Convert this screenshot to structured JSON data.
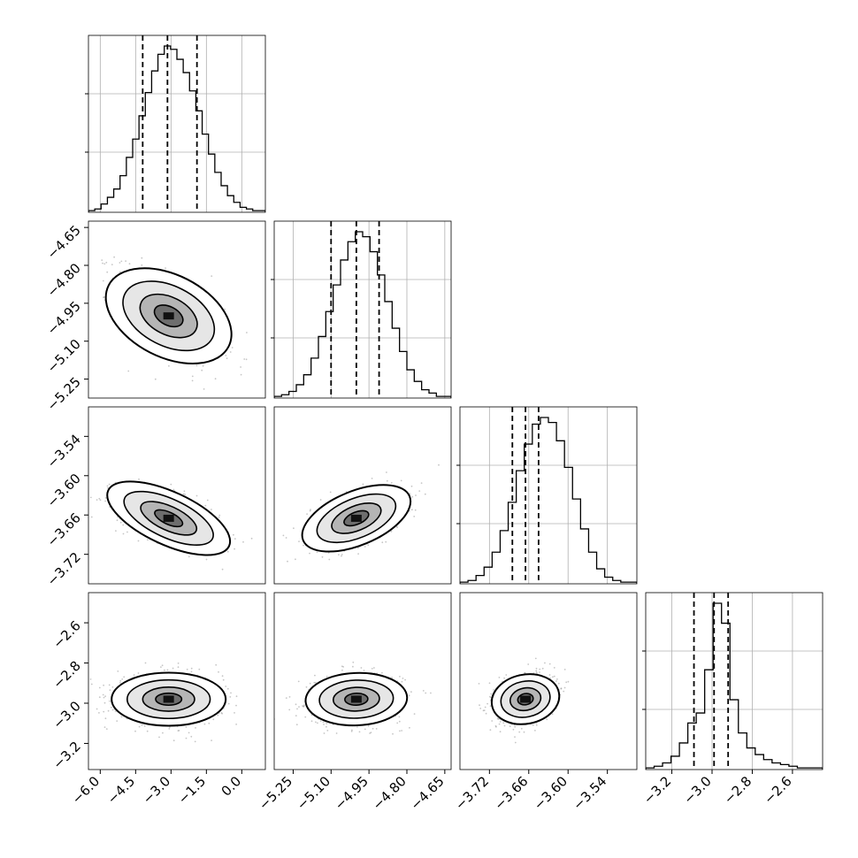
{
  "chart_data": {
    "type": "corner",
    "description_free": true,
    "parameters": [
      {
        "range": [
          -6.5,
          1.0
        ],
        "ticks": [
          -6.0,
          -4.5,
          -3.0,
          -1.5,
          0.0
        ],
        "tick_labels": [
          "−6.0",
          "−4.5",
          "−3.0",
          "−1.5",
          "0.0"
        ],
        "quantiles": [
          -4.2,
          -3.15,
          -1.9
        ],
        "mean": -3.1,
        "sd": 1.1
      },
      {
        "range": [
          -5.325,
          -4.625
        ],
        "ticks": [
          -5.25,
          -5.1,
          -4.95,
          -4.8,
          -4.65
        ],
        "tick_labels": [
          "−5.25",
          "−5.10",
          "−4.95",
          "−4.80",
          "−4.65"
        ],
        "quantiles": [
          -5.1,
          -5.0,
          -4.91
        ],
        "mean": -5.0,
        "sd": 0.09
      },
      {
        "range": [
          -3.765,
          -3.495
        ],
        "ticks": [
          -3.72,
          -3.66,
          -3.6,
          -3.54
        ],
        "tick_labels": [
          "−3.72",
          "−3.66",
          "−3.60",
          "−3.54"
        ],
        "quantiles": [
          -3.685,
          -3.665,
          -3.645
        ],
        "mean": -3.665,
        "sd": 0.022
      },
      {
        "range": [
          -3.33,
          -2.45
        ],
        "ticks": [
          -3.2,
          -3.0,
          -2.8,
          -2.6
        ],
        "tick_labels": [
          "−3.2",
          "−3.0",
          "−2.8",
          "−2.6"
        ],
        "quantiles": [
          -3.09,
          -2.99,
          -2.92
        ],
        "mean": -2.98,
        "sd": 0.06
      }
    ],
    "histograms": [
      {
        "counts": [
          1,
          2,
          5,
          9,
          14,
          22,
          33,
          44,
          58,
          72,
          85,
          95,
          100,
          98,
          92,
          84,
          73,
          61,
          47,
          35,
          24,
          16,
          10,
          6,
          3,
          2,
          1,
          1
        ]
      },
      {
        "counts": [
          1,
          2,
          4,
          8,
          14,
          24,
          37,
          52,
          68,
          83,
          94,
          100,
          97,
          88,
          74,
          58,
          42,
          28,
          17,
          10,
          5,
          3,
          1,
          1
        ]
      },
      {
        "counts": [
          1,
          2,
          5,
          10,
          19,
          32,
          49,
          68,
          84,
          96,
          100,
          97,
          86,
          70,
          51,
          33,
          19,
          9,
          4,
          2,
          1,
          1
        ]
      },
      {
        "counts": [
          1,
          2,
          4,
          8,
          16,
          28,
          34,
          60,
          100,
          88,
          42,
          22,
          13,
          9,
          6,
          4,
          3,
          2,
          1,
          1,
          1
        ]
      }
    ],
    "correlations": [
      {
        "row": 1,
        "col": 0,
        "rho": -0.6
      },
      {
        "row": 2,
        "col": 0,
        "rho": -0.55
      },
      {
        "row": 2,
        "col": 1,
        "rho": 0.5
      },
      {
        "row": 3,
        "col": 0,
        "rho": 0.0
      },
      {
        "row": 3,
        "col": 1,
        "rho": 0.05
      },
      {
        "row": 3,
        "col": 2,
        "rho": 0.25
      }
    ],
    "grid": true,
    "colors": {
      "ink": "#000000",
      "grid": "#b0b0b0",
      "points": "#808080"
    }
  }
}
